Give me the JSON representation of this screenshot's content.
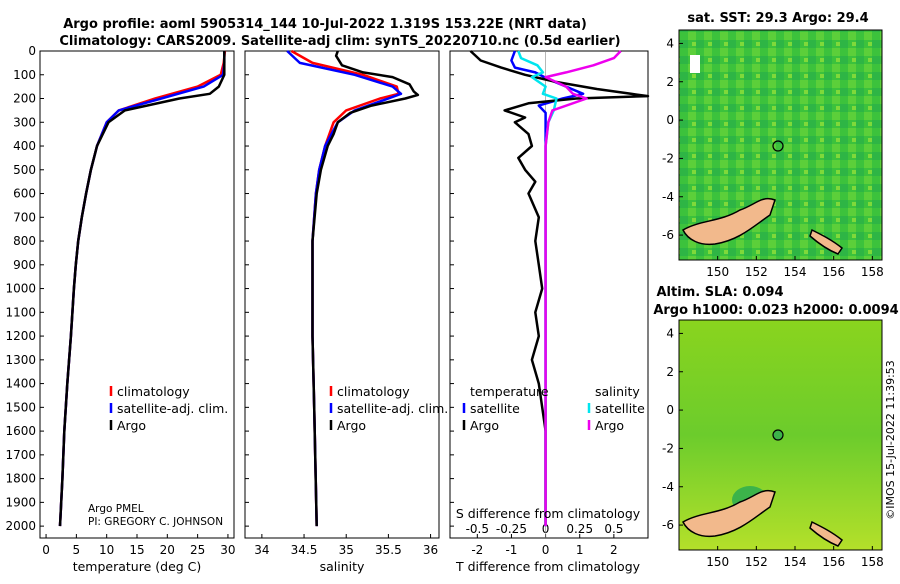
{
  "header": {
    "title_line1": "Argo profile: aoml 5905314_144 10-Jul-2022 1.319S 153.22E (NRT data)",
    "title_line2": "Climatology: CARS2009. Satellite-adj clim: synTS_20220710.nc (0.5d earlier)"
  },
  "sst_map": {
    "title": "sat. SST: 29.3 Argo: 29.4",
    "x_ticks": [
      "150",
      "152",
      "154",
      "156",
      "158"
    ],
    "y_ticks": [
      "4",
      "2",
      "0",
      "-2",
      "-4",
      "-6"
    ]
  },
  "sla_map": {
    "title_line1": "Altim. SLA: 0.094",
    "title_line2": "Argo h1000: 0.023 h2000: 0.0094",
    "x_ticks": [
      "150",
      "152",
      "154",
      "156",
      "158"
    ],
    "y_ticks": [
      "4",
      "2",
      "0",
      "-2",
      "-4",
      "-6"
    ]
  },
  "credit": {
    "institution": "Argo PMEL",
    "pi": "PI: GREGORY C. JOHNSON",
    "watermark": "©IMOS 15-Jul-2022 11:39:53"
  },
  "legends": {
    "climatology": "climatology",
    "satellite_adj": "satellite-adj. clim.",
    "argo": "Argo",
    "temperature": "temperature",
    "salinity": "salinity",
    "satellite": "satellite"
  },
  "colors": {
    "climatology": "#ff0000",
    "satellite_adj": "#0000ff",
    "argo": "#000000",
    "sat_temp": "#00e5ee",
    "sat_sal": "#ee00ee",
    "land": "#f2b98c",
    "sst_sea": "#33c033",
    "sla_sea": "#7ed321"
  },
  "chart_data": [
    {
      "type": "line",
      "id": "temperature",
      "xlabel": "temperature (deg C)",
      "ylabel": "",
      "xlim": [
        -1,
        31
      ],
      "ylim": [
        2050,
        0
      ],
      "x_ticks": [
        0,
        5,
        10,
        15,
        20,
        25,
        30
      ],
      "y_ticks": [
        0,
        100,
        200,
        300,
        400,
        500,
        600,
        700,
        800,
        900,
        1000,
        1100,
        1200,
        1300,
        1400,
        1500,
        1600,
        1700,
        1800,
        1900,
        2000
      ],
      "series": [
        {
          "name": "climatology",
          "depth": [
            0,
            50,
            100,
            150,
            200,
            250,
            300,
            400,
            500,
            600,
            700,
            800,
            900,
            1000,
            1200,
            1400,
            1600,
            1800,
            2000
          ],
          "values": [
            29.5,
            29.3,
            28.8,
            25,
            18,
            12,
            10,
            8.4,
            7.4,
            6.6,
            5.9,
            5.3,
            4.9,
            4.6,
            4.1,
            3.5,
            3.0,
            2.7,
            2.3
          ]
        },
        {
          "name": "satellite-adj. clim.",
          "depth": [
            0,
            50,
            100,
            150,
            200,
            250,
            300,
            400,
            500,
            600,
            700,
            800,
            900,
            1000,
            1200,
            1400,
            1600,
            1800,
            2000
          ],
          "values": [
            29.4,
            29.4,
            29.2,
            26,
            19,
            12,
            10,
            8.4,
            7.4,
            6.6,
            5.9,
            5.3,
            4.9,
            4.6,
            4.1,
            3.5,
            3.0,
            2.7,
            2.3
          ]
        },
        {
          "name": "Argo",
          "depth": [
            0,
            50,
            100,
            150,
            180,
            200,
            250,
            300,
            400,
            500,
            600,
            700,
            800,
            900,
            1000,
            1200,
            1400,
            1600,
            1800,
            2000
          ],
          "values": [
            29.4,
            29.4,
            29.4,
            28.5,
            27,
            22,
            13,
            10.3,
            8.4,
            7.4,
            6.6,
            5.9,
            5.3,
            4.9,
            4.6,
            4.1,
            3.5,
            3.0,
            2.7,
            2.3
          ]
        }
      ]
    },
    {
      "type": "line",
      "id": "salinity",
      "xlabel": "salinity",
      "xlim": [
        33.8,
        36.1
      ],
      "ylim": [
        2050,
        0
      ],
      "x_ticks": [
        34,
        34.5,
        35,
        35.5,
        36
      ],
      "x_tick_labels": [
        "34",
        "34.5",
        "35",
        "35.5",
        "36"
      ],
      "series": [
        {
          "name": "climatology",
          "depth": [
            0,
            50,
            100,
            150,
            180,
            200,
            250,
            300,
            400,
            500,
            600,
            800,
            1000,
            1200,
            1500,
            2000
          ],
          "values": [
            34.35,
            34.6,
            35.2,
            35.6,
            35.62,
            35.4,
            35.0,
            34.85,
            34.75,
            34.68,
            34.64,
            34.6,
            34.6,
            34.6,
            34.62,
            34.65
          ]
        },
        {
          "name": "satellite-adj. clim.",
          "depth": [
            0,
            50,
            100,
            150,
            180,
            200,
            250,
            300,
            400,
            500,
            600,
            800,
            1000,
            1200,
            1500,
            2000
          ],
          "values": [
            34.3,
            34.45,
            35.1,
            35.55,
            35.65,
            35.5,
            35.1,
            34.9,
            34.75,
            34.68,
            34.64,
            34.6,
            34.6,
            34.6,
            34.62,
            34.65
          ]
        },
        {
          "name": "Argo",
          "depth": [
            0,
            20,
            60,
            90,
            110,
            140,
            170,
            185,
            200,
            230,
            260,
            300,
            350,
            400,
            500,
            600,
            800,
            1000,
            1200,
            1500,
            2000
          ],
          "values": [
            34.9,
            34.88,
            34.95,
            35.2,
            35.55,
            35.75,
            35.8,
            35.85,
            35.7,
            35.3,
            35.05,
            34.9,
            34.85,
            34.78,
            34.7,
            34.65,
            34.6,
            34.6,
            34.6,
            34.62,
            34.65
          ]
        }
      ]
    },
    {
      "type": "line",
      "id": "differences",
      "xlabel": "T difference from climatology",
      "xlabel_top": "S difference from climatology",
      "xlim": [
        -2.8,
        3
      ],
      "xlim_s": [
        -0.7,
        0.75
      ],
      "ylim": [
        2050,
        0
      ],
      "x_ticks": [
        -2,
        -1,
        0,
        1,
        2
      ],
      "x_tick_labels": [
        "-2",
        "-1",
        "0",
        "1",
        "2"
      ],
      "s_ticks": [
        -0.5,
        -0.25,
        0,
        0.25,
        0.5
      ],
      "s_tick_labels": [
        "-0.5",
        "-0.25",
        "0",
        "0.25",
        "0.5"
      ],
      "series": [
        {
          "name": "temperature satellite",
          "axis": "T",
          "depth": [
            0,
            40,
            70,
            90,
            120,
            150,
            180,
            200,
            230,
            260,
            300,
            400,
            500,
            700,
            1000,
            1500,
            2000
          ],
          "values": [
            -0.9,
            -1.0,
            -0.9,
            -0.3,
            0.1,
            0.6,
            1.1,
            0.5,
            -0.2,
            0,
            0,
            0,
            0,
            0,
            0,
            0,
            0
          ]
        },
        {
          "name": "temperature Argo",
          "axis": "T",
          "depth": [
            0,
            40,
            70,
            100,
            130,
            160,
            180,
            190,
            200,
            220,
            250,
            280,
            300,
            350,
            400,
            450,
            500,
            550,
            600,
            700,
            800,
            900,
            1000,
            1100,
            1200,
            1300,
            1400,
            1500,
            1600,
            1800,
            2000
          ],
          "values": [
            -2.2,
            -1.9,
            -1.3,
            -0.6,
            0.3,
            1.5,
            2.5,
            3.0,
            0.9,
            -0.5,
            -1.2,
            -0.6,
            -0.9,
            -0.5,
            -0.4,
            -0.8,
            -0.6,
            -0.3,
            -0.5,
            -0.2,
            -0.3,
            -0.2,
            -0.1,
            -0.3,
            -0.2,
            -0.4,
            -0.2,
            -0.1,
            0,
            0,
            0
          ]
        },
        {
          "name": "salinity satellite",
          "axis": "S",
          "depth": [
            0,
            30,
            60,
            90,
            110,
            150,
            180,
            200,
            250,
            300,
            400,
            600,
            1000,
            2000
          ],
          "values": [
            -0.2,
            -0.18,
            -0.06,
            -0.02,
            -0.1,
            0.0,
            -0.02,
            0.08,
            0.06,
            0.02,
            0,
            0,
            0,
            0
          ]
        },
        {
          "name": "salinity Argo",
          "axis": "S",
          "depth": [
            0,
            30,
            60,
            90,
            110,
            150,
            180,
            200,
            250,
            300,
            400,
            600,
            1000,
            2000
          ],
          "values": [
            0.55,
            0.5,
            0.35,
            0.15,
            0.0,
            0.15,
            0.2,
            0.3,
            0.05,
            0.02,
            0,
            0,
            0,
            0
          ]
        }
      ]
    }
  ]
}
